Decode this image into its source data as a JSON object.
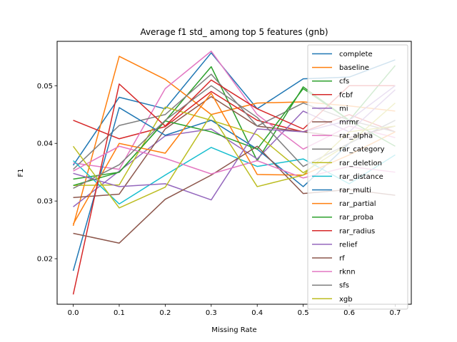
{
  "chart_data": {
    "type": "line",
    "title": "Average f1 std_ among top 5 features (gnb)",
    "xlabel": "Missing Rate",
    "ylabel": "F1",
    "x": [
      0.0,
      0.1,
      0.2,
      0.3,
      0.4,
      0.5,
      0.6,
      0.7
    ],
    "x_ticks": [
      "0.0",
      "0.1",
      "0.2",
      "0.3",
      "0.4",
      "0.5",
      "0.6",
      "0.7"
    ],
    "y_ticks": [
      "0.02",
      "0.03",
      "0.04",
      "0.05"
    ],
    "xlim": [
      -0.035,
      0.735
    ],
    "ylim": [
      0.0121,
      0.0577
    ],
    "grid": false,
    "legend_position": "right",
    "series": [
      {
        "name": "complete",
        "color": "#1f77b4",
        "values": [
          0.0362,
          0.048,
          0.046,
          0.0557,
          0.046,
          0.0512,
          0.0515,
          0.0545
        ]
      },
      {
        "name": "baseline",
        "color": "#ff7f0e",
        "values": [
          0.0257,
          0.0551,
          0.0511,
          0.045,
          0.047,
          0.0472,
          0.0465,
          0.0456
        ]
      },
      {
        "name": "cfs",
        "color": "#2ca02c",
        "values": [
          0.0338,
          0.035,
          0.0439,
          0.0533,
          0.037,
          0.0498,
          0.044,
          0.0535
        ]
      },
      {
        "name": "fcbf",
        "color": "#d62728",
        "values": [
          0.044,
          0.0408,
          0.0429,
          0.049,
          0.044,
          0.042,
          0.045,
          0.042
        ]
      },
      {
        "name": "mi",
        "color": "#9467bd",
        "values": [
          0.029,
          0.0352,
          0.0413,
          0.0425,
          0.0373,
          0.0456,
          0.042,
          0.0493
        ]
      },
      {
        "name": "mrmr",
        "color": "#8c564b",
        "values": [
          0.0306,
          0.0312,
          0.0425,
          0.0481,
          0.043,
          0.042,
          0.041,
          0.043
        ]
      },
      {
        "name": "rar_alpha",
        "color": "#e377c2",
        "values": [
          0.0366,
          0.0355,
          0.0495,
          0.056,
          0.045,
          0.039,
          0.043,
          0.041
        ]
      },
      {
        "name": "rar_category",
        "color": "#7f7f7f",
        "values": [
          0.0355,
          0.0431,
          0.045,
          0.052,
          0.043,
          0.047,
          0.044,
          0.042
        ]
      },
      {
        "name": "rar_deletion",
        "color": "#bcbd22",
        "values": [
          0.0327,
          0.0328,
          0.0463,
          0.044,
          0.0415,
          0.0349,
          0.04,
          0.047
        ]
      },
      {
        "name": "rar_distance",
        "color": "#17becf",
        "values": [
          0.037,
          0.0295,
          0.0345,
          0.0393,
          0.036,
          0.0373,
          0.033,
          0.038
        ]
      },
      {
        "name": "rar_multi",
        "color": "#1f77b4",
        "values": [
          0.0179,
          0.0462,
          0.0414,
          0.044,
          0.039,
          0.0325,
          0.04,
          0.044
        ]
      },
      {
        "name": "rar_partial",
        "color": "#ff7f0e",
        "values": [
          0.026,
          0.04,
          0.0383,
          0.0487,
          0.0346,
          0.0345,
          0.038,
          0.042
        ]
      },
      {
        "name": "rar_proba",
        "color": "#2ca02c",
        "values": [
          0.0327,
          0.035,
          0.0439,
          0.042,
          0.039,
          0.0495,
          0.044,
          0.0395
        ]
      },
      {
        "name": "rar_radius",
        "color": "#d62728",
        "values": [
          0.0138,
          0.0503,
          0.043,
          0.051,
          0.046,
          0.0425,
          0.05,
          0.05
        ]
      },
      {
        "name": "relief",
        "color": "#9467bd",
        "values": [
          0.0348,
          0.0325,
          0.033,
          0.0302,
          0.0425,
          0.042,
          0.044,
          0.05
        ]
      },
      {
        "name": "rf",
        "color": "#8c564b",
        "values": [
          0.0244,
          0.0227,
          0.0303,
          0.0345,
          0.0395,
          0.0313,
          0.032,
          0.031
        ]
      },
      {
        "name": "rknn",
        "color": "#e377c2",
        "values": [
          0.0352,
          0.0395,
          0.0374,
          0.0347,
          0.037,
          0.034,
          0.036,
          0.035
        ]
      },
      {
        "name": "sfs",
        "color": "#7f7f7f",
        "values": [
          0.0322,
          0.0363,
          0.044,
          0.05,
          0.0445,
          0.036,
          0.04,
          0.044
        ]
      },
      {
        "name": "xgb",
        "color": "#bcbd22",
        "values": [
          0.0395,
          0.0288,
          0.0324,
          0.045,
          0.0325,
          0.0345,
          0.042,
          0.043
        ]
      }
    ]
  }
}
